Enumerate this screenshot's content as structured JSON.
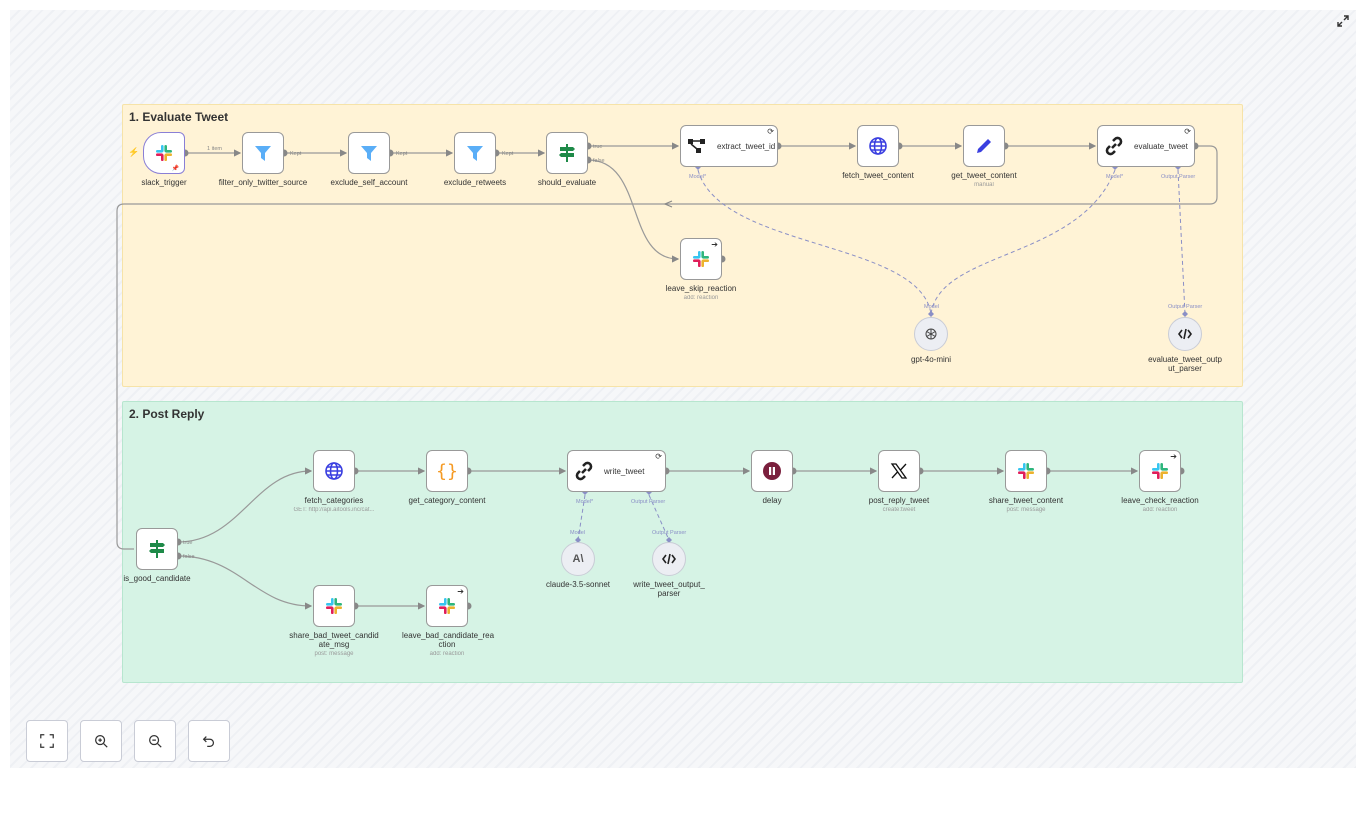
{
  "groups": [
    {
      "title": "1. Evaluate Tweet",
      "color": "#fff3d6"
    },
    {
      "title": "2. Post Reply",
      "color": "#d6f3e5"
    }
  ],
  "nodes": [
    {
      "id": "slack_trigger",
      "label": "slack_trigger",
      "icon": "slack-icon"
    },
    {
      "id": "filter_only_twitter_source",
      "label": "filter_only_twitter_source",
      "icon": "filter-icon"
    },
    {
      "id": "exclude_self_account",
      "label": "exclude_self_account",
      "icon": "filter-icon"
    },
    {
      "id": "exclude_retweets",
      "label": "exclude_retweets",
      "icon": "filter-icon"
    },
    {
      "id": "should_evaluate",
      "label": "should_evaluate",
      "icon": "if-signpost-icon"
    },
    {
      "id": "extract_tweet_id",
      "label": "extract_tweet_id",
      "icon": "information-extractor-icon"
    },
    {
      "id": "fetch_tweet_content",
      "label": "fetch_tweet_content",
      "icon": "globe-icon"
    },
    {
      "id": "get_tweet_content",
      "label": "get_tweet_content",
      "subtitle": "manual",
      "icon": "pen-icon"
    },
    {
      "id": "evaluate_tweet",
      "label": "evaluate_tweet",
      "icon": "chain-link-icon"
    },
    {
      "id": "leave_skip_reaction",
      "label": "leave_skip_reaction",
      "subtitle": "add: reaction",
      "icon": "slack-icon"
    },
    {
      "id": "gpt_4o_mini",
      "label": "gpt-4o-mini",
      "icon": "openai-icon"
    },
    {
      "id": "evaluate_tweet_output_parser",
      "label": "evaluate_tweet_outp ut_parser",
      "icon": "code-icon"
    },
    {
      "id": "fetch_categories",
      "label": "fetch_categories",
      "subtitle": "GET: http://api.aitools.inc/cat...",
      "icon": "globe-icon"
    },
    {
      "id": "get_category_content",
      "label": "get_category_content",
      "icon": "braces-icon"
    },
    {
      "id": "write_tweet",
      "label": "write_tweet",
      "icon": "chain-link-icon"
    },
    {
      "id": "delay",
      "label": "delay",
      "icon": "pause-icon"
    },
    {
      "id": "post_reply_tweet",
      "label": "post_reply_tweet",
      "subtitle": "create:tweet",
      "icon": "x-icon"
    },
    {
      "id": "share_tweet_content",
      "label": "share_tweet_content",
      "subtitle": "post: message",
      "icon": "slack-icon"
    },
    {
      "id": "leave_check_reaction",
      "label": "leave_check_reaction",
      "subtitle": "add: reaction",
      "icon": "slack-icon"
    },
    {
      "id": "is_good_candidate",
      "label": "is_good_candidate",
      "icon": "if-signpost-icon"
    },
    {
      "id": "claude_3_5_sonnet",
      "label": "claude-3.5-sonnet",
      "icon": "anthropic-icon"
    },
    {
      "id": "write_tweet_output_parser",
      "label": "write_tweet_output_ parser",
      "icon": "code-icon"
    },
    {
      "id": "share_bad_tweet_candidate_msg",
      "label": "share_bad_tweet_candid ate_msg",
      "subtitle": "post: message",
      "icon": "slack-icon"
    },
    {
      "id": "leave_bad_candidate_reaction",
      "label": "leave_bad_candidate_rea ction",
      "subtitle": "add: reaction",
      "icon": "slack-icon"
    }
  ],
  "edge_labels": {
    "one_item": "1 item",
    "kept": "Kept",
    "true": "true",
    "false": "false",
    "model_req": "Model*",
    "model": "Model",
    "output_parser": "Output Parser"
  },
  "controls": [
    {
      "name": "fit-view-button",
      "icon": "fit-view-icon"
    },
    {
      "name": "zoom-in-button",
      "icon": "zoom-in-icon"
    },
    {
      "name": "zoom-out-button",
      "icon": "zoom-out-icon"
    },
    {
      "name": "undo-button",
      "icon": "undo-icon"
    }
  ]
}
